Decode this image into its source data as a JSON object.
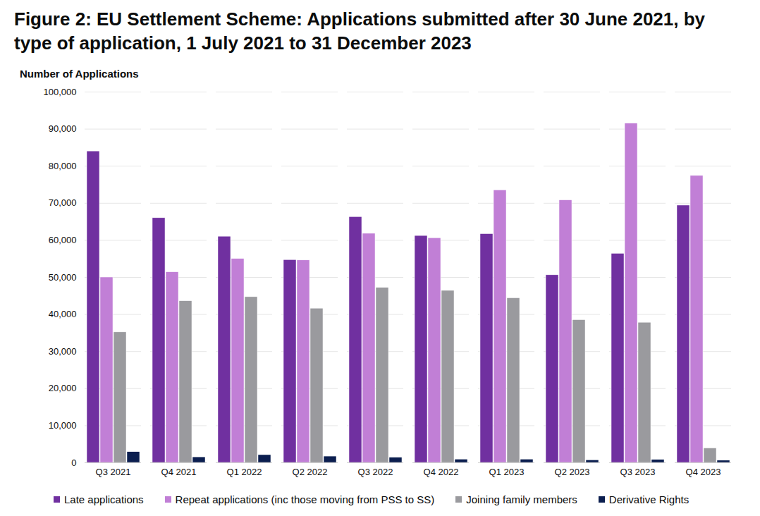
{
  "chart_data": {
    "type": "bar",
    "title": "Figure 2: EU Settlement Scheme: Applications submitted after 30 June 2021, by type of application, 1 July 2021 to 31 December 2023",
    "ylabel": "Number of Applications",
    "categories": [
      "Q3 2021",
      "Q4 2021",
      "Q1 2022",
      "Q2 2022",
      "Q3 2022",
      "Q4 2022",
      "Q1 2023",
      "Q2 2023",
      "Q3 2023",
      "Q4 2023"
    ],
    "series": [
      {
        "name": "Late applications",
        "color": "#7030a0",
        "values": [
          84000,
          66000,
          61000,
          54700,
          66300,
          61200,
          61700,
          50600,
          56400,
          69400
        ]
      },
      {
        "name": "Repeat applications (inc those moving from PSS to SS)",
        "color": "#c17fd6",
        "values": [
          50000,
          51400,
          55000,
          54600,
          61800,
          60600,
          73500,
          70800,
          91500,
          77400
        ]
      },
      {
        "name": "Joining family members",
        "color": "#9a9a9e",
        "values": [
          35200,
          43600,
          44700,
          41600,
          47200,
          46400,
          44400,
          38500,
          37800,
          3900
        ]
      },
      {
        "name": "Derivative Rights",
        "color": "#0b1e4f",
        "values": [
          2900,
          1500,
          2100,
          1700,
          1400,
          900,
          900,
          700,
          800,
          600
        ]
      }
    ],
    "ylim": [
      0,
      100000
    ],
    "yticks": [
      0,
      {
        "value": 10000,
        "label": "10,000"
      },
      {
        "value": 20000,
        "label": "20,000"
      },
      {
        "value": 30000,
        "label": "30,000"
      },
      {
        "value": 40000,
        "label": "40,000"
      },
      {
        "value": 50000,
        "label": "50,000"
      },
      {
        "value": 60000,
        "label": "60,000"
      },
      {
        "value": 70000,
        "label": "70,000"
      },
      {
        "value": 80000,
        "label": "80,000"
      },
      {
        "value": 90000,
        "label": "90,000"
      },
      {
        "value": 100000,
        "label": "100,000"
      }
    ],
    "grid": true,
    "legend": "bottom"
  }
}
